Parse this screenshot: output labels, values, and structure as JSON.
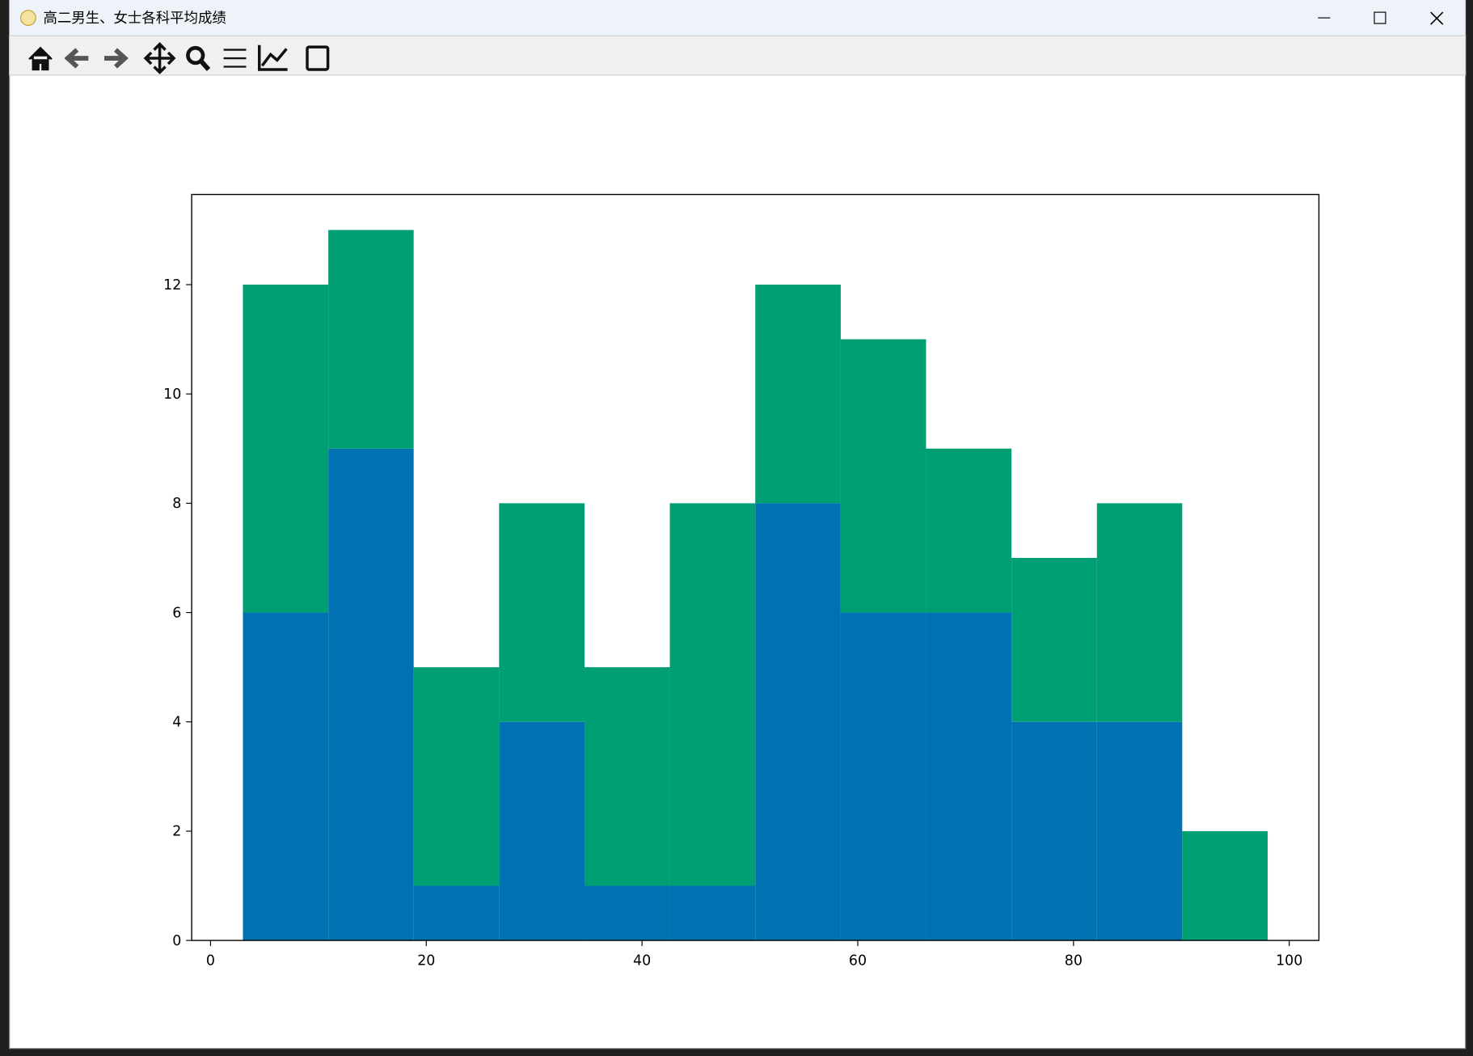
{
  "window": {
    "title": "高二男生、女士各科平均成绩"
  },
  "chart_data": {
    "type": "histogram",
    "stacked": true,
    "bins": [
      3,
      10.92,
      18.83,
      26.75,
      34.67,
      42.58,
      50.5,
      58.42,
      66.33,
      74.25,
      82.17,
      90.08,
      98
    ],
    "series": [
      {
        "color": "#0072b2",
        "values": [
          6,
          9,
          1,
          4,
          1,
          1,
          8,
          6,
          6,
          4,
          4,
          0
        ]
      },
      {
        "color": "#009e73",
        "values": [
          6,
          4,
          4,
          4,
          4,
          7,
          4,
          5,
          3,
          3,
          4,
          2
        ]
      }
    ],
    "xlim": [
      -1.75,
      102.75
    ],
    "xticks": [
      0,
      20,
      40,
      60,
      80,
      100
    ],
    "ylim": [
      0,
      13.65
    ],
    "yticks": [
      0,
      2,
      4,
      6,
      8,
      10,
      12
    ]
  }
}
